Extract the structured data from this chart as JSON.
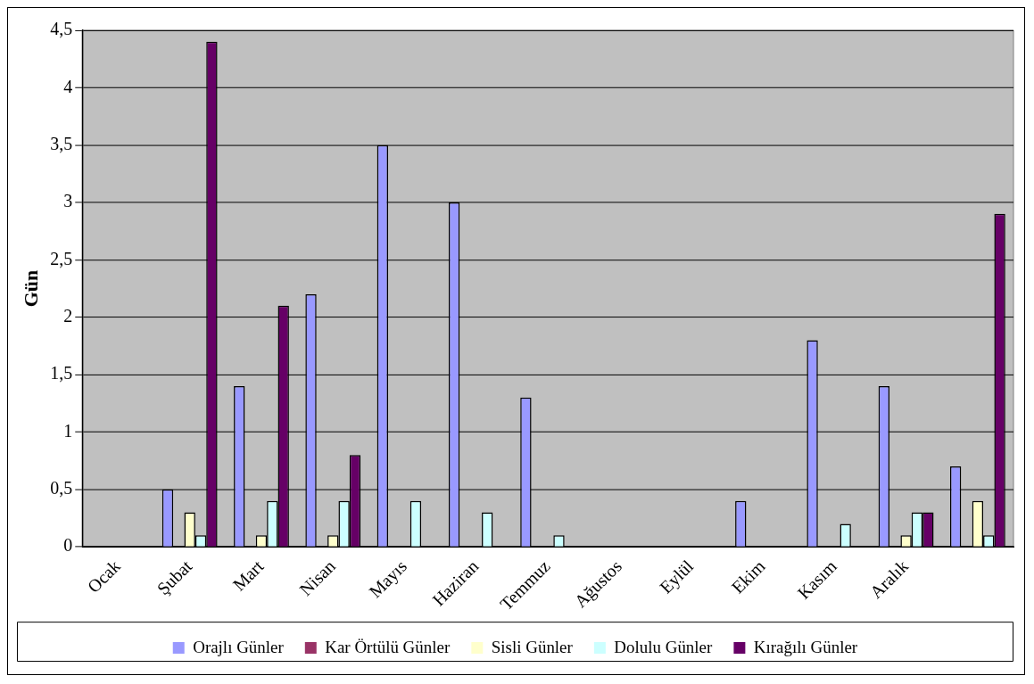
{
  "chart_data": {
    "type": "bar",
    "ylabel": "Gün",
    "categories": [
      "Ocak",
      "Şubat",
      "Mart",
      "Nisan",
      "Mayıs",
      "Haziran",
      "Temmuz",
      "Ağustos",
      "Eylül",
      "Ekim",
      "Kasım",
      "Aralık",
      null
    ],
    "series": [
      {
        "name": "Orajlı Günler",
        "color": "#9999ff",
        "values": [
          0,
          0.5,
          1.4,
          2.2,
          3.5,
          3,
          1.3,
          0,
          0,
          0.4,
          1.8,
          1.4,
          0.7
        ]
      },
      {
        "name": "Kar Örtülü Günler",
        "color": "#993366",
        "values": [
          0,
          0,
          0,
          0,
          0,
          0,
          0,
          0,
          0,
          0,
          0,
          0,
          0
        ]
      },
      {
        "name": "Sisli Günler",
        "color": "#ffffcc",
        "values": [
          0,
          0.3,
          0.1,
          0.1,
          0,
          0,
          0,
          0,
          0,
          0,
          0,
          0.1,
          0.4
        ]
      },
      {
        "name": "Dolulu Günler",
        "color": "#ccffff",
        "values": [
          0,
          0.1,
          0.4,
          0.4,
          0.4,
          0.3,
          0.1,
          0,
          0,
          0,
          0.2,
          0.3,
          0.1
        ]
      },
      {
        "name": "Kırağılı Günler",
        "color": "#660066",
        "values": [
          0,
          4.4,
          2.1,
          0.8,
          0,
          0,
          0,
          0,
          0,
          0,
          0,
          0.3,
          2.9
        ]
      }
    ],
    "ylim": [
      0,
      4.5
    ],
    "yticks": [
      {
        "value": 0,
        "label": "0"
      },
      {
        "value": 0.5,
        "label": "0,5"
      },
      {
        "value": 1,
        "label": "1"
      },
      {
        "value": 1.5,
        "label": "1,5"
      },
      {
        "value": 2,
        "label": "2"
      },
      {
        "value": 2.5,
        "label": "2,5"
      },
      {
        "value": 3,
        "label": "3"
      },
      {
        "value": 3.5,
        "label": "3,5"
      },
      {
        "value": 4,
        "label": "4"
      },
      {
        "value": 4.5,
        "label": "4,5"
      }
    ],
    "grid": "y",
    "legend": "bottom"
  }
}
